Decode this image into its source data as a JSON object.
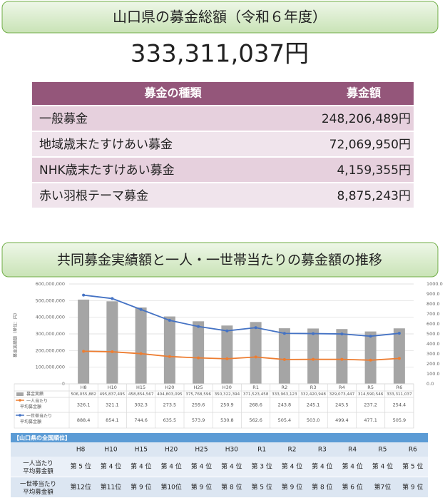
{
  "header1": "山口県の募金総額（令和６年度）",
  "total": "333,311,037円",
  "table": {
    "columns": [
      "募金の種類",
      "募金額"
    ],
    "rows": [
      [
        "一般募金",
        "248,206,489円"
      ],
      [
        "地域歳末たすけあい募金",
        "72,069,950円"
      ],
      [
        "NHK歳末たすけあい募金",
        "4,159,355円"
      ],
      [
        "赤い羽根テーマ募金",
        "8,875,243円"
      ]
    ]
  },
  "header2": "共同募金実績額と一人・一世帯当たりの募金額の推移",
  "chart": {
    "type": "bar-line",
    "ylabel": "募金実績額（単位：円）",
    "categories": [
      "H8",
      "H10",
      "H15",
      "H20",
      "H25",
      "H30",
      "R1",
      "R2",
      "R3",
      "R4",
      "R5",
      "R6"
    ],
    "ylim": [
      0,
      600000000
    ],
    "yticks": [
      0,
      {
        "value": 100000000,
        "label": "100,000,000"
      },
      {
        "value": 200000000,
        "label": "200,000,000"
      },
      {
        "value": 300000000,
        "label": "300,000,000"
      },
      {
        "value": 400000000,
        "label": "400,000,000"
      },
      {
        "value": 500000000,
        "label": "500,000,000"
      },
      {
        "value": 600000000,
        "label": "600,000,000"
      }
    ],
    "y2lim": [
      0,
      1000
    ],
    "y2ticks": [
      {
        "value": 0,
        "label": "0.0"
      },
      {
        "value": 100,
        "label": "100.0"
      },
      {
        "value": 200,
        "label": "200.0"
      },
      {
        "value": 300,
        "label": "300.0"
      },
      {
        "value": 400,
        "label": "400.0"
      },
      {
        "value": 500,
        "label": "500.0"
      },
      {
        "value": 600,
        "label": "600.0"
      },
      {
        "value": 700,
        "label": "700.0"
      },
      {
        "value": 800,
        "label": "800.0"
      },
      {
        "value": 900,
        "label": "900.0"
      },
      {
        "value": 1000,
        "label": "1000.0"
      }
    ],
    "series": [
      {
        "name": "募金実績",
        "type": "bar",
        "color": "#a5a5a5",
        "values": [
          506055882,
          495837495,
          458854567,
          404803095,
          375768596,
          350322394,
          371523458,
          333963123,
          332420948,
          329073447,
          314590546,
          333311037
        ],
        "value_labels": [
          "506,055,882",
          "495,837,495",
          "458,854,567",
          "404,803,095",
          "375,768,596",
          "350,322,394",
          "371,523,458",
          "333,963,123",
          "332,420,948",
          "329,073,447",
          "314,590,546",
          "333,311,037"
        ]
      },
      {
        "name": "一人当たり平均募金額",
        "type": "line",
        "axis": "y2",
        "color": "#ed7d31",
        "values": [
          326.1,
          321.1,
          302.3,
          273.5,
          259.6,
          250.9,
          268.6,
          243.8,
          245.1,
          245.5,
          237.2,
          254.4
        ]
      },
      {
        "name": "一世帯当たり平均募金額",
        "type": "line",
        "axis": "y2",
        "color": "#4472c4",
        "values": [
          888.4,
          854.1,
          744.6,
          635.5,
          573.9,
          530.8,
          562.6,
          505.4,
          503,
          499.4,
          477.1,
          505.9
        ],
        "value_labels": [
          "888.4",
          "854.1",
          "744.6",
          "635.5",
          "573.9",
          "530.8",
          "562.6",
          "505.4",
          "503.0",
          "499.4",
          "477.1",
          "505.9"
        ]
      }
    ]
  },
  "ranking": {
    "title": "【山口県の全国順位】",
    "rows": [
      {
        "label": "一人当たり平均募金額",
        "values": [
          "第 5 位",
          "第 4 位",
          "第 4 位",
          "第 4 位",
          "第 4 位",
          "第 4 位",
          "第 3 位",
          "第 4 位",
          "第 4 位",
          "第 4 位",
          "第 4 位",
          "第 5 位"
        ]
      },
      {
        "label": "一世帯当たり平均募金額",
        "values": [
          "第12位",
          "第11位",
          "第 9 位",
          "第10位",
          "第 9 位",
          "第 8 位",
          "第 5 位",
          "第 9 位",
          "第 8 位",
          "第 6 位",
          "第7位",
          "第 9 位"
        ]
      }
    ]
  }
}
